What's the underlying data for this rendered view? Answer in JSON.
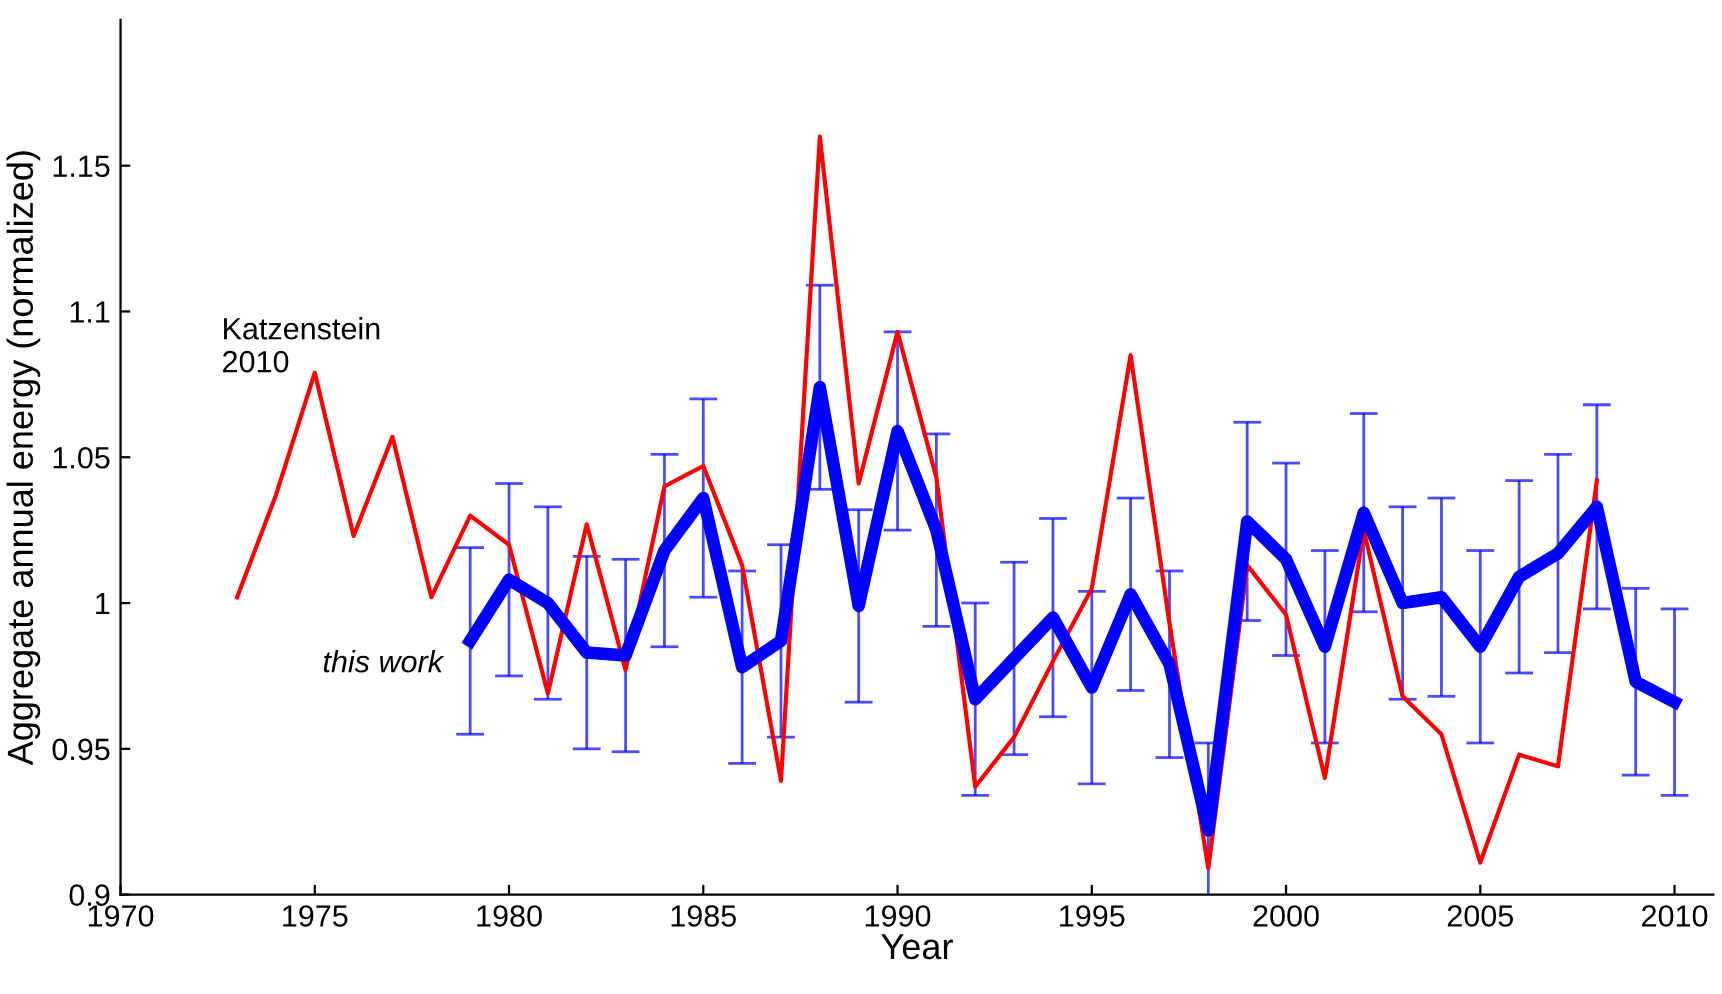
{
  "chart_data": {
    "type": "line",
    "xlabel": "Year",
    "ylabel": "Aggregate annual energy (normalized)",
    "xlim": [
      1970,
      2011
    ],
    "ylim": [
      0.9,
      1.2
    ],
    "xticks": [
      1970,
      1975,
      1980,
      1985,
      1990,
      1995,
      2000,
      2005,
      2010
    ],
    "yticks": [
      0.9,
      0.95,
      1,
      1.05,
      1.1,
      1.15
    ],
    "grid": false,
    "legend": false,
    "marker": "none",
    "line_style": "solid",
    "series": [
      {
        "name": "Katzenstein\n2010",
        "color": "#ff0000",
        "x": [
          1973,
          1974,
          1975,
          1976,
          1977,
          1978,
          1979,
          1980,
          1981,
          1982,
          1983,
          1984,
          1985,
          1986,
          1987,
          1988,
          1989,
          1990,
          1991,
          1992,
          1993,
          1994,
          1995,
          1996,
          1997,
          1998,
          1999,
          2000,
          2001,
          2002,
          2003,
          2004,
          2005,
          2006,
          2007,
          2008
        ],
        "values": [
          1.002,
          1.037,
          1.079,
          1.023,
          1.057,
          1.002,
          1.03,
          1.02,
          0.969,
          1.027,
          0.977,
          1.04,
          1.047,
          1.013,
          0.939,
          1.16,
          1.041,
          1.093,
          1.043,
          0.937,
          0.954,
          0.98,
          1.005,
          1.085,
          0.993,
          0.909,
          1.013,
          0.996,
          0.94,
          1.025,
          0.968,
          0.955,
          0.911,
          0.948,
          0.944,
          1.042
        ]
      },
      {
        "name": "this work",
        "color": "#0000ff",
        "x": [
          1979,
          1980,
          1981,
          1982,
          1983,
          1984,
          1985,
          1986,
          1987,
          1988,
          1989,
          1990,
          1991,
          1992,
          1993,
          1994,
          1995,
          1996,
          1997,
          1998,
          1999,
          2000,
          2001,
          2002,
          2003,
          2004,
          2005,
          2006,
          2007,
          2008,
          2009,
          2010
        ],
        "values": [
          0.987,
          1.008,
          1.0,
          0.983,
          0.982,
          1.018,
          1.036,
          0.978,
          0.987,
          1.074,
          0.999,
          1.059,
          1.025,
          0.967,
          0.981,
          0.995,
          0.971,
          1.003,
          0.979,
          0.922,
          1.028,
          1.015,
          0.985,
          1.031,
          1.0,
          1.002,
          0.985,
          1.009,
          1.017,
          1.033,
          0.973,
          0.966
        ],
        "errors": [
          0.032,
          0.033,
          0.033,
          0.033,
          0.033,
          0.033,
          0.034,
          0.033,
          0.033,
          0.035,
          0.033,
          0.034,
          0.033,
          0.033,
          0.033,
          0.034,
          0.033,
          0.033,
          0.032,
          0.03,
          0.034,
          0.033,
          0.033,
          0.034,
          0.033,
          0.034,
          0.033,
          0.033,
          0.034,
          0.035,
          0.032,
          0.032
        ]
      }
    ]
  }
}
